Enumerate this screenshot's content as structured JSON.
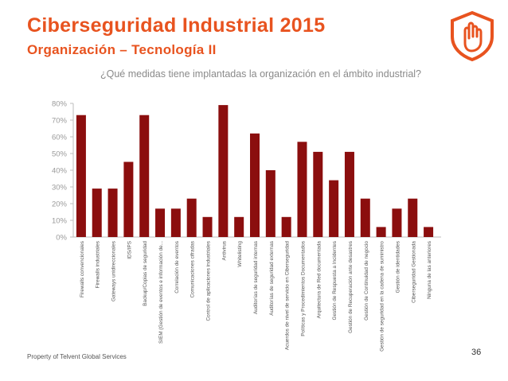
{
  "slide": {
    "title": "Ciberseguridad Industrial 2015",
    "subtitle": "Organización – Tecnología II",
    "question": "¿Qué medidas tiene implantadas la organización en el ámbito industrial?",
    "footer": "Property of Telvent Global Services",
    "page_number": "36",
    "accent_color": "#e8531f",
    "logo_icon": "shield-hand-icon"
  },
  "chart_data": {
    "type": "bar",
    "title": "¿Qué medidas tiene implantadas la organización en el ámbito industrial?",
    "xlabel": "",
    "ylabel": "",
    "ylim": [
      0,
      80
    ],
    "yticks": [
      "0%",
      "10%",
      "20%",
      "30%",
      "40%",
      "50%",
      "60%",
      "70%",
      "80%"
    ],
    "bar_color": "#8b0e0e",
    "categories": [
      "Firewalls convencionales",
      "Firewalls industriales",
      "Gateways unidireccionales",
      "IDS/IPS",
      "Backup/Copias de seguridad",
      "SIEM (Gestión de eventos e información de...",
      "Correlación de eventos",
      "Comunicaciones cifradas",
      "Control de aplicaciones industriales",
      "Antivirus",
      "Whitelisting",
      "Auditorías de seguridad internas",
      "Auditorías de seguridad externas",
      "Acuerdos de nivel de servicio en Ciberseguridad",
      "Políticas y Procedimientos Documentados",
      "Arquitectura de Red documentada",
      "Gestión de Respuesta a Incidentes",
      "Gestión de Recuperación ante desastres",
      "Gestión de Continuidad de negocio",
      "Gestión de seguridad en la cadena de suministro",
      "Gestión de identidades",
      "Ciberseguridad Gestionada",
      "Ninguna de las anteriores"
    ],
    "values": [
      73,
      29,
      29,
      45,
      73,
      17,
      17,
      23,
      12,
      79,
      12,
      62,
      40,
      12,
      57,
      51,
      34,
      51,
      23,
      6,
      17,
      23,
      6
    ]
  }
}
